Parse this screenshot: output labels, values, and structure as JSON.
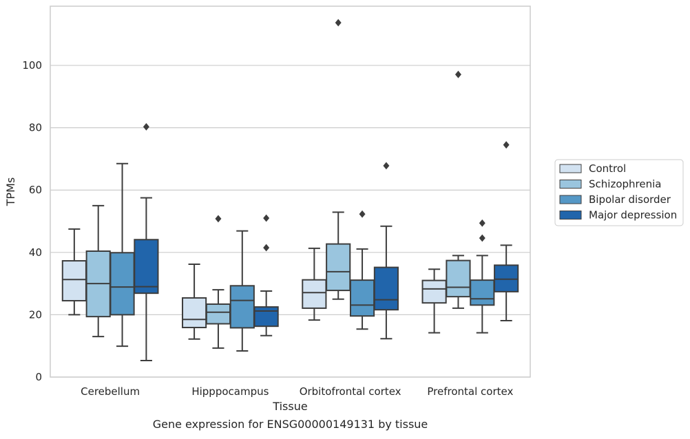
{
  "chart_data": {
    "type": "box",
    "title": "",
    "caption": "Gene expression for ENSG00000149131 by tissue",
    "xlabel": "Tissue",
    "ylabel": "TPMs",
    "ylim": [
      0,
      119
    ],
    "yticks": [
      0,
      20,
      40,
      60,
      80,
      100
    ],
    "grid": "horizontal",
    "legend_position": "outside-right",
    "categories": [
      "Cerebellum",
      "Hipppocampus",
      "Orbitofrontal cortex",
      "Prefrontal cortex"
    ],
    "series": [
      {
        "name": "Control",
        "color": "#d2e2f1",
        "boxes": [
          {
            "whisker_low": 20.0,
            "q1": 24.5,
            "median": 31.3,
            "q3": 37.3,
            "whisker_high": 47.5,
            "outliers": []
          },
          {
            "whisker_low": 12.2,
            "q1": 15.9,
            "median": 18.5,
            "q3": 25.4,
            "whisker_high": 36.2,
            "outliers": []
          },
          {
            "whisker_low": 18.3,
            "q1": 22.1,
            "median": 27.1,
            "q3": 31.2,
            "whisker_high": 41.3,
            "outliers": []
          },
          {
            "whisker_low": 14.2,
            "q1": 23.8,
            "median": 28.3,
            "q3": 31.0,
            "whisker_high": 34.6,
            "outliers": []
          }
        ]
      },
      {
        "name": "Schizophrenia",
        "color": "#9ac5de",
        "boxes": [
          {
            "whisker_low": 13.0,
            "q1": 19.4,
            "median": 30.0,
            "q3": 40.4,
            "whisker_high": 55.0,
            "outliers": []
          },
          {
            "whisker_low": 9.3,
            "q1": 17.1,
            "median": 20.8,
            "q3": 23.4,
            "whisker_high": 28.0,
            "outliers": [
              50.8
            ]
          },
          {
            "whisker_low": 25.0,
            "q1": 27.8,
            "median": 33.8,
            "q3": 42.7,
            "whisker_high": 52.9,
            "outliers": [
              113.7
            ]
          },
          {
            "whisker_low": 22.1,
            "q1": 25.8,
            "median": 28.8,
            "q3": 37.4,
            "whisker_high": 39.0,
            "outliers": [
              97.1
            ]
          }
        ]
      },
      {
        "name": "Bipolar disorder",
        "color": "#5598c6",
        "boxes": [
          {
            "whisker_low": 9.9,
            "q1": 20.0,
            "median": 28.9,
            "q3": 39.9,
            "whisker_high": 68.5,
            "outliers": []
          },
          {
            "whisker_low": 8.4,
            "q1": 15.8,
            "median": 24.6,
            "q3": 29.3,
            "whisker_high": 46.9,
            "outliers": []
          },
          {
            "whisker_low": 15.4,
            "q1": 19.6,
            "median": 23.1,
            "q3": 31.1,
            "whisker_high": 41.1,
            "outliers": [
              52.3
            ]
          },
          {
            "whisker_low": 14.2,
            "q1": 23.1,
            "median": 25.1,
            "q3": 31.1,
            "whisker_high": 39.0,
            "outliers": [
              44.6,
              49.4
            ]
          }
        ]
      },
      {
        "name": "Major depression",
        "color": "#2165ab",
        "boxes": [
          {
            "whisker_low": 5.3,
            "q1": 26.9,
            "median": 29.0,
            "q3": 44.1,
            "whisker_high": 57.5,
            "outliers": [
              80.3
            ]
          },
          {
            "whisker_low": 13.3,
            "q1": 16.3,
            "median": 21.2,
            "q3": 22.5,
            "whisker_high": 27.6,
            "outliers": [
              41.5,
              51.0
            ]
          },
          {
            "whisker_low": 12.3,
            "q1": 21.6,
            "median": 24.8,
            "q3": 35.2,
            "whisker_high": 48.4,
            "outliers": [
              67.8
            ]
          },
          {
            "whisker_low": 18.1,
            "q1": 27.4,
            "median": 31.4,
            "q3": 35.9,
            "whisker_high": 42.3,
            "outliers": [
              74.5
            ]
          }
        ]
      }
    ]
  }
}
